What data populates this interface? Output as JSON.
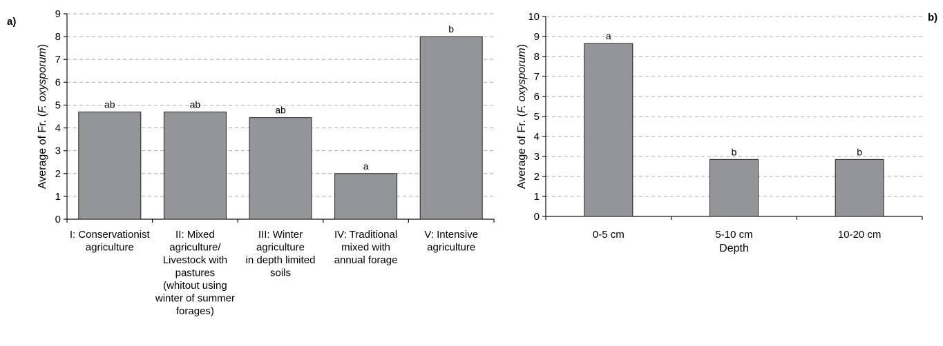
{
  "colors": {
    "bar_fill": "#939598",
    "bar_stroke": "#222222",
    "grid": "#aaaaaa",
    "axis": "#111111"
  },
  "chart_data": [
    {
      "panel_label": "a)",
      "type": "bar",
      "categories": [
        "I: Conservationist\nagriculture",
        "II: Mixed\nagriculture/\nLivestock with\npastures\n(whitout using\nwinter of summer\nforages)",
        "III: Winter\nagriculture\nin depth limited\nsoils",
        "IV: Traditional\nmixed with\nannual forage",
        "V: Intensive\nagriculture"
      ],
      "values": [
        4.7,
        4.7,
        4.45,
        2.0,
        8.0
      ],
      "bar_labels": [
        "ab",
        "ab",
        "ab",
        "a",
        "b"
      ],
      "ylabel_prefix": "Average of Fr. (",
      "ylabel_italic": "F. oxysporum",
      "ylabel_suffix": ")",
      "xlabel": "",
      "ylim": [
        0,
        9
      ],
      "yticks": [
        0,
        1,
        2,
        3,
        4,
        5,
        6,
        7,
        8,
        9
      ],
      "grid": true
    },
    {
      "panel_label": "b)",
      "type": "bar",
      "categories": [
        "0-5 cm",
        "5-10 cm",
        "10-20 cm"
      ],
      "values": [
        8.65,
        2.85,
        2.85
      ],
      "bar_labels": [
        "a",
        "b",
        "b"
      ],
      "ylabel_prefix": "Average of Fr. (",
      "ylabel_italic": "F. oxysporum",
      "ylabel_suffix": ")",
      "xlabel": "Depth",
      "ylim": [
        0,
        10
      ],
      "yticks": [
        0,
        1,
        2,
        3,
        4,
        5,
        6,
        7,
        8,
        9,
        10
      ],
      "grid": true
    }
  ]
}
